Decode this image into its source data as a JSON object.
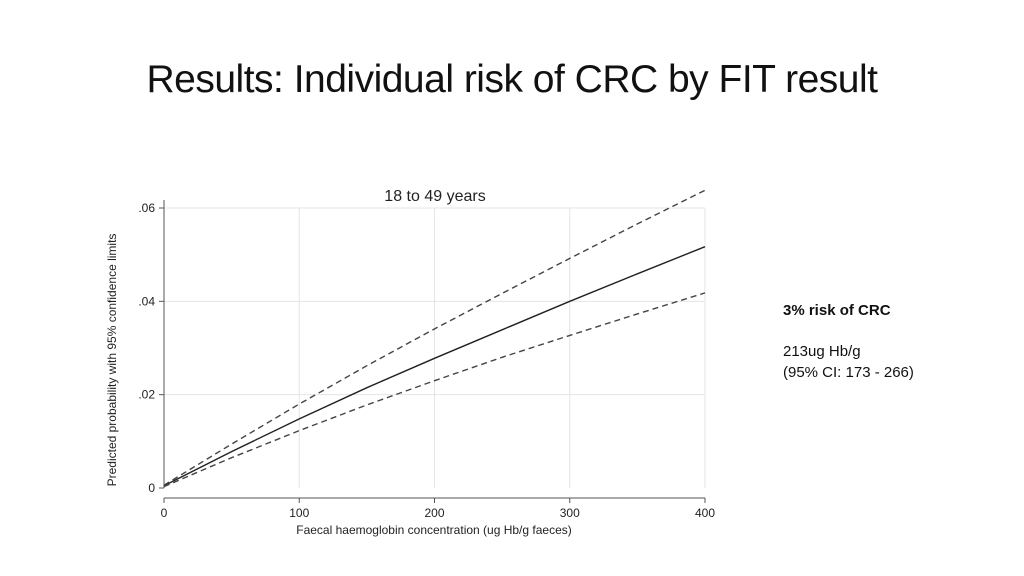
{
  "slide": {
    "title": "Results: Individual risk of CRC by FIT result"
  },
  "annotation": {
    "headline": "3% risk of CRC",
    "value": "213ug Hb/g",
    "ci": "(95% CI: 173 - 266)"
  },
  "chart_data": {
    "type": "line",
    "title": "18 to 49 years",
    "xlabel": "Faecal haemoglobin concentration (ug Hb/g faeces)",
    "ylabel": "Predicted probability with 95% confidence limits",
    "xlim": [
      0,
      400
    ],
    "ylim": [
      0,
      0.06
    ],
    "xticks": [
      0,
      100,
      200,
      300,
      400
    ],
    "xtick_labels": [
      "0",
      "100",
      "200",
      "300",
      "400"
    ],
    "yticks": [
      0,
      0.02,
      0.04,
      0.06
    ],
    "ytick_labels": [
      "0",
      ".02",
      ".04",
      ".06"
    ],
    "grid": true,
    "series": [
      {
        "style": "solid",
        "color": "#222222",
        "x": [
          0,
          50,
          100,
          150,
          200,
          250,
          300,
          350,
          400
        ],
        "y": [
          0.0005,
          0.0078,
          0.0148,
          0.0215,
          0.0278,
          0.0339,
          0.04,
          0.0459,
          0.0517
        ]
      },
      {
        "style": "dashed",
        "color": "#444444",
        "x": [
          0,
          50,
          100,
          150,
          200,
          250,
          300,
          350,
          400
        ],
        "y": [
          0.0006,
          0.0094,
          0.018,
          0.0262,
          0.0341,
          0.0417,
          0.0492,
          0.0566,
          0.0638
        ]
      },
      {
        "style": "dashed",
        "color": "#444444",
        "x": [
          0,
          50,
          100,
          150,
          200,
          250,
          300,
          350,
          400
        ],
        "y": [
          0.0003,
          0.0065,
          0.0123,
          0.0178,
          0.023,
          0.028,
          0.0327,
          0.0373,
          0.0418
        ]
      }
    ]
  }
}
